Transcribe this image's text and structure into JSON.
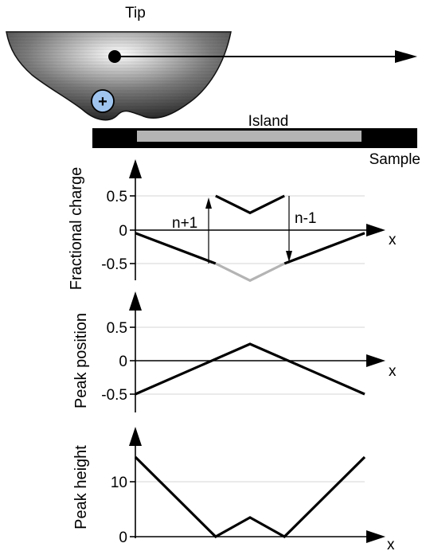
{
  "schematic": {
    "tip_label": "Tip",
    "island_label": "Island",
    "sample_label": "Sample",
    "charge_symbol": "+"
  },
  "colors": {
    "line": "#000000",
    "grey_curve": "#b4b4b4",
    "charge_fill": "#9fc4ee",
    "island_fill": "#b4b4b4"
  },
  "chart_data": [
    {
      "type": "line",
      "ylabel": "Fractional charge",
      "xlabel": "x",
      "yticks": [
        "0.5",
        "0",
        "-0.5"
      ],
      "ylim": [
        -0.75,
        0.75
      ],
      "series": [
        {
          "color": "#000000",
          "x": [
            0,
            0.35
          ],
          "y": [
            -0.05,
            -0.5
          ]
        },
        {
          "color": "#000000",
          "x": [
            0.35,
            0.5,
            0.65
          ],
          "y": [
            0.5,
            0.25,
            0.5
          ]
        },
        {
          "color": "#000000",
          "x": [
            0.65,
            1.0
          ],
          "y": [
            -0.5,
            -0.05
          ]
        },
        {
          "color": "#b4b4b4",
          "x": [
            0.35,
            0.5,
            0.65
          ],
          "y": [
            -0.5,
            -0.75,
            -0.5
          ]
        }
      ],
      "annotations": [
        {
          "text": "n+1",
          "x": 0.35,
          "from": -0.5,
          "to": 0.5
        },
        {
          "text": "n-1",
          "x": 0.65,
          "from": 0.5,
          "to": -0.5
        }
      ]
    },
    {
      "type": "line",
      "ylabel": "Peak position",
      "xlabel": "x",
      "yticks": [
        "0.5",
        "0",
        "-0.5"
      ],
      "ylim": [
        -0.5,
        0.5
      ],
      "series": [
        {
          "color": "#000000",
          "x": [
            0,
            0.5,
            1.0
          ],
          "y": [
            -0.5,
            0.25,
            -0.5
          ]
        }
      ]
    },
    {
      "type": "line",
      "ylabel": "Peak height",
      "xlabel": "x",
      "yticks": [
        "10",
        "0"
      ],
      "ylim": [
        0,
        14.5
      ],
      "series": [
        {
          "color": "#000000",
          "x": [
            0,
            0.35,
            0.5,
            0.65,
            1.0
          ],
          "y": [
            14.5,
            0,
            3.5,
            0,
            14.5
          ]
        }
      ]
    }
  ]
}
